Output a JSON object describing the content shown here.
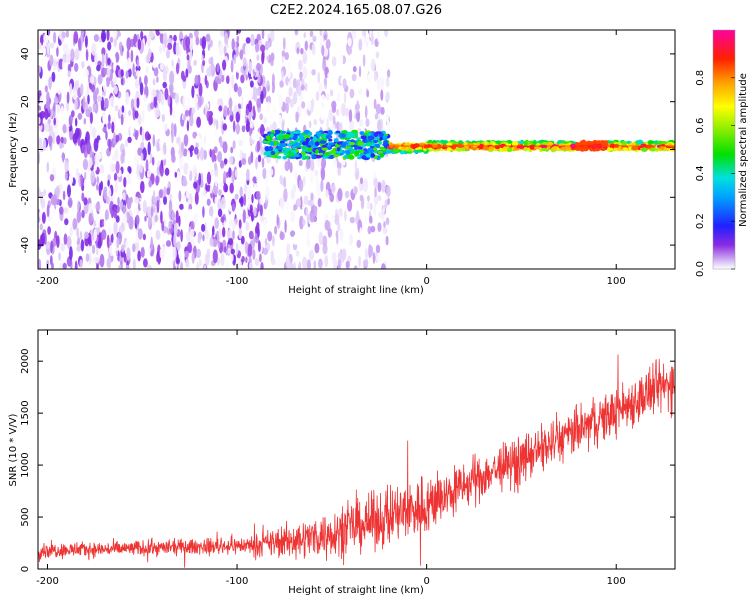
{
  "title": "C2E2.2024.165.08.07.G26",
  "chart_data": [
    {
      "type": "heatmap",
      "title": "C2E2.2024.165.08.07.G26",
      "xlabel": "Height of straight line (km)",
      "ylabel": "Frequency (Hz)",
      "xlim": [
        -205,
        131
      ],
      "ylim": [
        -50,
        50
      ],
      "x_ticks": [
        -200,
        -100,
        0,
        100
      ],
      "y_ticks": [
        -40,
        -20,
        0,
        20,
        40
      ],
      "grid": false,
      "colorbar": {
        "label": "Normalized spectral amplitude",
        "range": [
          0,
          1
        ],
        "ticks": [
          0.0,
          0.2,
          0.4,
          0.6,
          0.8
        ],
        "colormap": "rainbow (purple-blue-cyan-green-yellow-orange-red-magenta)"
      },
      "regions": [
        {
          "x_range": [
            -205,
            -85
          ],
          "freq_range": [
            -50,
            50
          ],
          "amplitude_range": [
            0.0,
            0.12
          ],
          "pattern": "scattered broadband noise"
        },
        {
          "x_range": [
            -85,
            -20
          ],
          "freq_range": [
            -50,
            50
          ],
          "amplitude_range": [
            0.0,
            0.06
          ],
          "pattern": "sparse faint noise"
        },
        {
          "x_range": [
            -85,
            -20
          ],
          "freq_range": [
            -3,
            8
          ],
          "amplitude_range": [
            0.15,
            0.55
          ],
          "pattern": "narrow band signal"
        },
        {
          "x_range": [
            -20,
            131
          ],
          "freq_range": [
            -2,
            4
          ],
          "amplitude_range": [
            0.3,
            0.95
          ],
          "pattern": "continuous narrow band near 0-2 Hz"
        }
      ]
    },
    {
      "type": "line",
      "xlabel": "Height of straight line (km)",
      "ylabel": "SNR (10 * V/V)",
      "xlim": [
        -205,
        131
      ],
      "ylim": [
        0,
        2300
      ],
      "x_ticks": [
        -200,
        -100,
        0,
        100
      ],
      "y_ticks": [
        0,
        500,
        1000,
        1500,
        2000
      ],
      "grid": false,
      "series_color": "#ee3333",
      "x": [
        -205,
        -180,
        -150,
        -120,
        -100,
        -90,
        -80,
        -70,
        -60,
        -50,
        -40,
        -30,
        -20,
        -10,
        0,
        10,
        20,
        30,
        40,
        50,
        60,
        70,
        80,
        90,
        100,
        110,
        120,
        131
      ],
      "values": [
        180,
        185,
        200,
        215,
        225,
        230,
        255,
        280,
        310,
        350,
        395,
        445,
        500,
        560,
        620,
        700,
        800,
        900,
        980,
        1050,
        1150,
        1240,
        1330,
        1420,
        1520,
        1620,
        1720,
        1800
      ],
      "noise_amplitude": [
        110,
        110,
        110,
        110,
        120,
        140,
        220,
        250,
        280,
        320,
        350,
        380,
        420,
        460,
        440,
        350,
        330,
        330,
        330,
        330,
        330,
        330,
        340,
        340,
        350,
        360,
        380,
        400
      ]
    }
  ]
}
